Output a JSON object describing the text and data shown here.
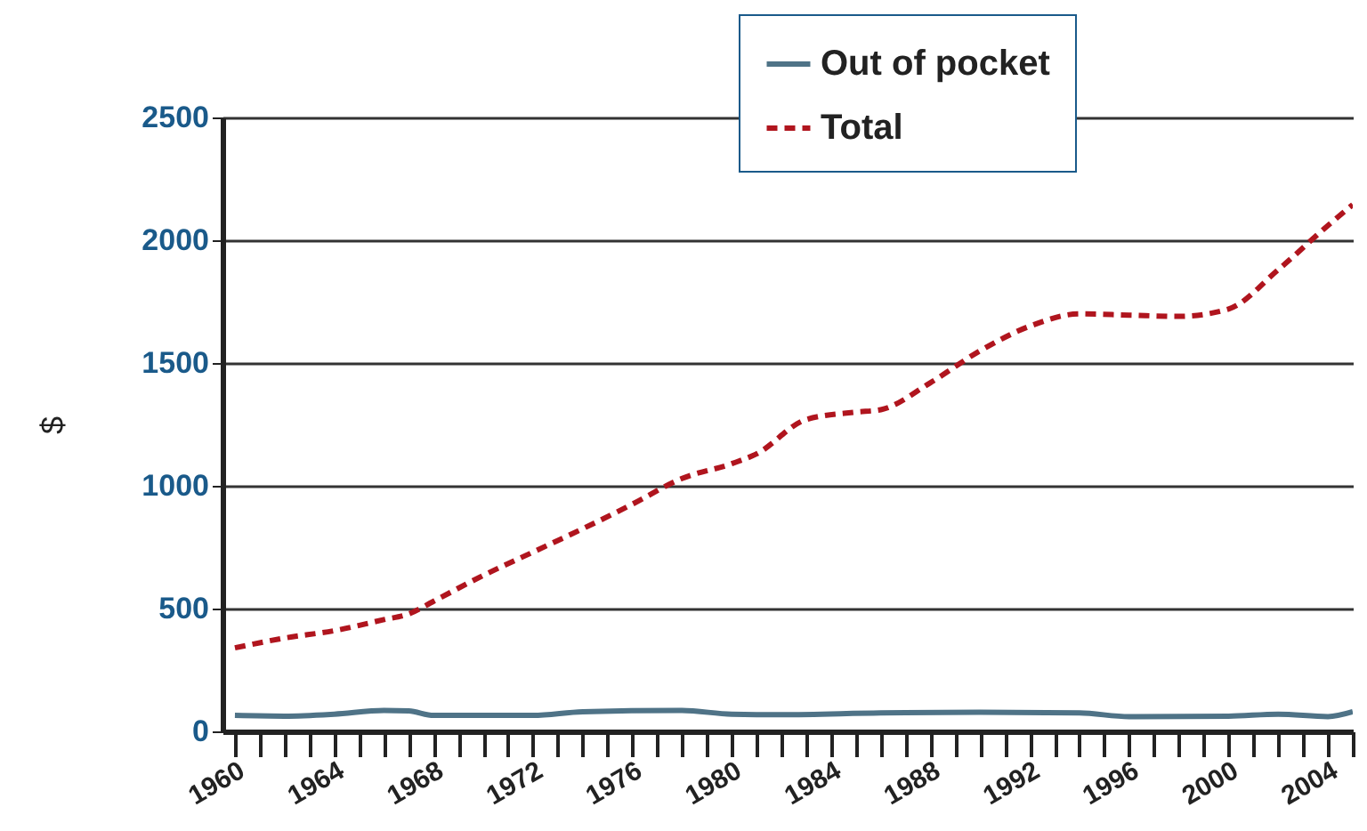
{
  "chart_data": {
    "type": "line",
    "ylabel": "$",
    "xlim": [
      1959.5,
      2005
    ],
    "xticks": [
      1960,
      1964,
      1968,
      1972,
      1976,
      1980,
      1984,
      1988,
      1992,
      1996,
      2000,
      2004
    ],
    "ylim": [
      0,
      2500
    ],
    "yticks": [
      0,
      500,
      1000,
      1500,
      2000,
      2500
    ],
    "grid": "y",
    "legend": "top right",
    "series": [
      {
        "name": "Out of pocket",
        "color": "#4f7387",
        "line_style": "solid",
        "x": [
          1960,
          1962,
          1964,
          1966,
          1967,
          1968,
          1972,
          1974,
          1978,
          1980,
          1982,
          1986,
          1990,
          1994,
          1996,
          2000,
          2002,
          2004,
          2005
        ],
        "values": [
          65,
          62,
          70,
          85,
          83,
          65,
          65,
          80,
          85,
          70,
          68,
          75,
          78,
          75,
          60,
          62,
          70,
          60,
          80
        ]
      },
      {
        "name": "Total",
        "color": "#b0151e",
        "line_style": "dashed",
        "x": [
          1960,
          1962,
          1964,
          1966,
          1967,
          1968,
          1970,
          1972,
          1974,
          1976,
          1978,
          1980,
          1981,
          1983,
          1985,
          1986,
          1988,
          1990,
          1992,
          1994,
          1996,
          1998,
          2000,
          2002,
          2004,
          2005
        ],
        "values": [
          340,
          380,
          410,
          455,
          478,
          530,
          635,
          730,
          825,
          925,
          1030,
          1090,
          1130,
          1270,
          1300,
          1310,
          1420,
          1550,
          1650,
          1700,
          1695,
          1690,
          1720,
          1880,
          2060,
          2145
        ]
      }
    ]
  }
}
